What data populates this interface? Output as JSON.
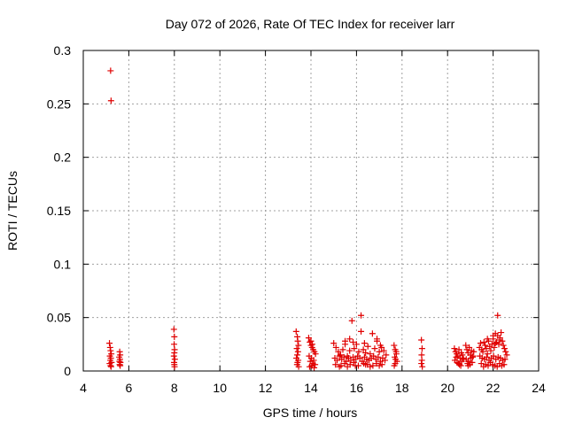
{
  "chart_data": {
    "type": "scatter",
    "title": "Day 072 of 2026, Rate Of TEC Index for receiver larr",
    "xlabel": "GPS time / hours",
    "ylabel": "ROTI / TECUs",
    "xlim": [
      4,
      24
    ],
    "ylim": [
      0,
      0.3
    ],
    "xticks": [
      4,
      6,
      8,
      10,
      12,
      14,
      16,
      18,
      20,
      22,
      24
    ],
    "yticks": [
      0,
      0.05,
      0.1,
      0.15,
      0.2,
      0.25,
      0.3
    ],
    "ytick_labels": [
      "0",
      "0.05",
      "0.1",
      "0.15",
      "0.2",
      "0.25",
      "0.3"
    ],
    "grid": true,
    "marker": "+",
    "marker_color": "#e00000",
    "series": [
      {
        "name": "ROTI",
        "x": [
          5.2,
          5.22,
          5.15,
          5.18,
          5.2,
          5.23,
          5.17,
          5.21,
          5.19,
          5.24,
          5.16,
          5.2,
          5.22,
          5.6,
          5.62,
          5.58,
          5.61,
          5.59,
          5.63,
          5.6,
          5.62,
          7.98,
          8.0,
          7.99,
          8.01,
          8.0,
          7.98,
          8.02,
          7.99,
          8.0,
          8.01,
          13.35,
          13.4,
          13.42,
          13.45,
          13.38,
          13.43,
          13.4,
          13.36,
          13.44,
          13.41,
          13.39,
          13.46,
          13.9,
          13.95,
          14.0,
          14.05,
          14.1,
          14.15,
          14.2,
          13.92,
          14.02,
          14.12,
          13.97,
          14.08,
          14.18,
          14.03,
          13.94,
          14.14,
          14.06,
          14.0,
          15.0,
          15.1,
          15.2,
          15.3,
          15.4,
          15.5,
          15.6,
          15.7,
          15.8,
          15.9,
          16.0,
          16.1,
          16.2,
          16.3,
          16.4,
          16.5,
          16.6,
          16.7,
          16.8,
          16.9,
          17.0,
          17.1,
          17.2,
          17.3,
          15.05,
          15.15,
          15.25,
          15.35,
          15.45,
          15.55,
          15.65,
          15.75,
          15.85,
          15.95,
          16.05,
          16.15,
          16.25,
          16.35,
          16.45,
          16.55,
          16.65,
          16.75,
          16.85,
          16.95,
          17.05,
          17.15,
          17.25,
          15.08,
          15.32,
          15.48,
          15.72,
          15.88,
          16.08,
          16.32,
          16.48,
          16.72,
          16.88,
          17.12,
          15.6,
          15.95,
          16.6,
          17.0,
          15.25,
          16.4,
          15.85,
          16.2,
          15.7,
          16.35,
          16.9,
          15.5,
          17.05,
          17.65,
          17.7,
          17.75,
          17.68,
          17.72,
          17.78,
          17.7,
          17.66,
          17.74,
          18.85,
          18.88,
          18.86,
          18.87,
          18.85,
          18.89,
          20.3,
          20.35,
          20.4,
          20.45,
          20.5,
          20.55,
          20.6,
          20.65,
          20.7,
          20.32,
          20.42,
          20.52,
          20.62,
          20.38,
          20.48,
          20.58,
          20.68,
          20.8,
          20.85,
          20.9,
          20.95,
          21.0,
          21.05,
          21.1,
          21.15,
          20.82,
          20.92,
          21.02,
          21.12,
          20.88,
          20.98,
          21.08,
          20.9,
          21.4,
          21.45,
          21.5,
          21.55,
          21.6,
          21.65,
          21.7,
          21.75,
          21.8,
          21.85,
          21.9,
          21.95,
          22.0,
          22.05,
          22.1,
          22.15,
          22.2,
          22.25,
          22.3,
          22.35,
          22.4,
          22.45,
          22.5,
          22.55,
          22.6,
          21.42,
          21.52,
          21.62,
          21.72,
          21.82,
          21.92,
          22.02,
          22.12,
          22.22,
          22.32,
          22.42,
          22.52,
          21.48,
          21.68,
          21.88,
          22.08,
          22.28,
          22.48,
          21.58,
          21.78,
          21.98,
          22.18,
          22.38,
          21.75,
          22.0,
          22.2,
          22.3,
          22.1
        ],
        "y": [
          0.281,
          0.253,
          0.026,
          0.022,
          0.019,
          0.016,
          0.014,
          0.012,
          0.01,
          0.008,
          0.007,
          0.005,
          0.004,
          0.018,
          0.015,
          0.013,
          0.011,
          0.009,
          0.008,
          0.006,
          0.005,
          0.039,
          0.032,
          0.025,
          0.02,
          0.017,
          0.014,
          0.011,
          0.008,
          0.006,
          0.004,
          0.037,
          0.032,
          0.028,
          0.024,
          0.021,
          0.018,
          0.015,
          0.012,
          0.01,
          0.008,
          0.006,
          0.004,
          0.031,
          0.027,
          0.024,
          0.022,
          0.02,
          0.018,
          0.016,
          0.014,
          0.012,
          0.01,
          0.009,
          0.007,
          0.006,
          0.005,
          0.004,
          0.003,
          0.025,
          0.028,
          0.026,
          0.022,
          0.018,
          0.015,
          0.02,
          0.025,
          0.014,
          0.019,
          0.047,
          0.021,
          0.025,
          0.018,
          0.052,
          0.02,
          0.017,
          0.023,
          0.016,
          0.035,
          0.021,
          0.028,
          0.018,
          0.022,
          0.019,
          0.015,
          0.012,
          0.01,
          0.014,
          0.011,
          0.013,
          0.009,
          0.012,
          0.01,
          0.013,
          0.011,
          0.014,
          0.012,
          0.009,
          0.013,
          0.011,
          0.01,
          0.012,
          0.014,
          0.011,
          0.013,
          0.009,
          0.012,
          0.01,
          0.006,
          0.005,
          0.007,
          0.006,
          0.008,
          0.005,
          0.007,
          0.006,
          0.005,
          0.007,
          0.006,
          0.004,
          0.005,
          0.004,
          0.005,
          0.004,
          0.006,
          0.027,
          0.037,
          0.03,
          0.026,
          0.03,
          0.028,
          0.024,
          0.024,
          0.02,
          0.016,
          0.013,
          0.011,
          0.009,
          0.007,
          0.005,
          0.018,
          0.029,
          0.021,
          0.015,
          0.01,
          0.007,
          0.004,
          0.021,
          0.018,
          0.016,
          0.014,
          0.02,
          0.012,
          0.017,
          0.015,
          0.011,
          0.01,
          0.008,
          0.006,
          0.009,
          0.013,
          0.007,
          0.005,
          0.012,
          0.024,
          0.02,
          0.017,
          0.022,
          0.015,
          0.019,
          0.013,
          0.018,
          0.011,
          0.009,
          0.012,
          0.014,
          0.007,
          0.006,
          0.008,
          0.005,
          0.022,
          0.026,
          0.02,
          0.018,
          0.027,
          0.024,
          0.021,
          0.016,
          0.028,
          0.023,
          0.019,
          0.025,
          0.03,
          0.022,
          0.035,
          0.027,
          0.033,
          0.025,
          0.031,
          0.036,
          0.028,
          0.024,
          0.021,
          0.018,
          0.015,
          0.014,
          0.012,
          0.011,
          0.013,
          0.01,
          0.012,
          0.014,
          0.011,
          0.013,
          0.012,
          0.01,
          0.011,
          0.007,
          0.006,
          0.008,
          0.005,
          0.007,
          0.006,
          0.004,
          0.005,
          0.006,
          0.004,
          0.005,
          0.03,
          0.033,
          0.052,
          0.029,
          0.026
        ]
      }
    ]
  }
}
